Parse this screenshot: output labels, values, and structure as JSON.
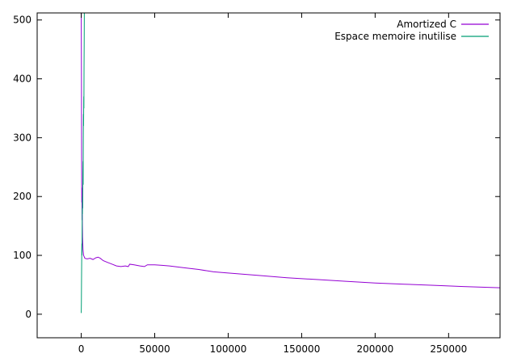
{
  "chart_data": {
    "type": "line",
    "title": "",
    "xlabel": "",
    "ylabel": "",
    "xlim": [
      -30000,
      285000
    ],
    "ylim": [
      -40,
      512
    ],
    "grid": false,
    "legend_position": "top-right",
    "xticks": [
      0,
      50000,
      100000,
      150000,
      200000,
      250000
    ],
    "yticks": [
      0,
      100,
      200,
      300,
      400,
      500
    ],
    "xtick_labels": [
      "0",
      "50000",
      "100000",
      "150000",
      "200000",
      "250000"
    ],
    "ytick_labels": [
      "0",
      "100",
      "200",
      "300",
      "400",
      "500"
    ],
    "series": [
      {
        "name": "Amortized C",
        "color": "#9400d3",
        "points": [
          [
            0,
            512
          ],
          [
            150,
            400
          ],
          [
            250,
            270
          ],
          [
            350,
            190
          ],
          [
            450,
            215
          ],
          [
            550,
            160
          ],
          [
            700,
            170
          ],
          [
            900,
            130
          ],
          [
            1200,
            110
          ],
          [
            1600,
            100
          ],
          [
            2500,
            95
          ],
          [
            4000,
            94
          ],
          [
            6000,
            95
          ],
          [
            8000,
            93
          ],
          [
            10000,
            96
          ],
          [
            11500,
            97
          ],
          [
            13000,
            95
          ],
          [
            15000,
            91
          ],
          [
            18000,
            88
          ],
          [
            21000,
            85
          ],
          [
            24000,
            82
          ],
          [
            27000,
            81
          ],
          [
            30000,
            82
          ],
          [
            32000,
            81
          ],
          [
            33000,
            85
          ],
          [
            36000,
            84
          ],
          [
            40000,
            82
          ],
          [
            43000,
            81
          ],
          [
            45000,
            84
          ],
          [
            50000,
            84
          ],
          [
            55000,
            83
          ],
          [
            60000,
            82
          ],
          [
            70000,
            79
          ],
          [
            80000,
            76
          ],
          [
            90000,
            72
          ],
          [
            100000,
            70
          ],
          [
            120000,
            66
          ],
          [
            140000,
            62
          ],
          [
            160000,
            59
          ],
          [
            180000,
            56
          ],
          [
            200000,
            53
          ],
          [
            220000,
            51
          ],
          [
            240000,
            49
          ],
          [
            260000,
            47
          ],
          [
            285000,
            45
          ]
        ]
      },
      {
        "name": "Espace memoire inutilise",
        "color": "#009e73",
        "points": [
          [
            0,
            2
          ],
          [
            100,
            20
          ],
          [
            200,
            60
          ],
          [
            300,
            90
          ],
          [
            400,
            120
          ],
          [
            500,
            100
          ],
          [
            600,
            140
          ],
          [
            700,
            180
          ],
          [
            800,
            170
          ],
          [
            900,
            200
          ],
          [
            1000,
            180
          ],
          [
            1100,
            240
          ],
          [
            1200,
            260
          ],
          [
            1300,
            220
          ],
          [
            1400,
            300
          ],
          [
            1500,
            340
          ],
          [
            1600,
            320
          ],
          [
            1700,
            370
          ],
          [
            1800,
            350
          ],
          [
            1900,
            420
          ],
          [
            2000,
            460
          ],
          [
            2100,
            512
          ]
        ]
      }
    ]
  }
}
